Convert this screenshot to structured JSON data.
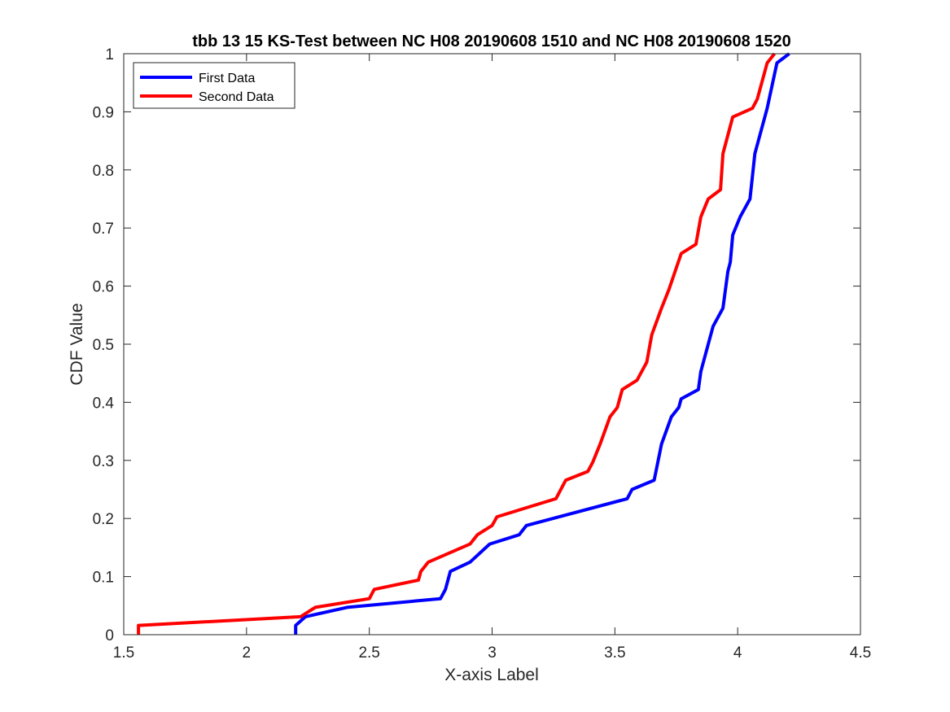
{
  "chart_data": {
    "type": "line",
    "title": "tbb 13 15 KS-Test between NC H08 20190608 1510 and NC H08 20190608 1520",
    "xlabel": "X-axis Label",
    "ylabel": "CDF Value",
    "xlim": [
      1.5,
      4.5
    ],
    "ylim": [
      0,
      1
    ],
    "xticks": [
      1.5,
      2,
      2.5,
      3,
      3.5,
      4,
      4.5
    ],
    "xtick_labels": [
      "1.5",
      "2",
      "2.5",
      "3",
      "3.5",
      "4",
      "4.5"
    ],
    "yticks": [
      0,
      0.1,
      0.2,
      0.3,
      0.4,
      0.5,
      0.6,
      0.7,
      0.8,
      0.9,
      1
    ],
    "ytick_labels": [
      "0",
      "0.1",
      "0.2",
      "0.3",
      "0.4",
      "0.5",
      "0.6",
      "0.7",
      "0.8",
      "0.9",
      "1"
    ],
    "grid": false,
    "legend_position": "top-left",
    "series": [
      {
        "name": "First Data",
        "color": "#0000ff",
        "points": [
          [
            2.2,
            0.0
          ],
          [
            2.2,
            0.016
          ],
          [
            2.24,
            0.031
          ],
          [
            2.41,
            0.047
          ],
          [
            2.79,
            0.062
          ],
          [
            2.81,
            0.078
          ],
          [
            2.83,
            0.109
          ],
          [
            2.91,
            0.125
          ],
          [
            2.99,
            0.156
          ],
          [
            3.11,
            0.172
          ],
          [
            3.14,
            0.188
          ],
          [
            3.55,
            0.234
          ],
          [
            3.57,
            0.25
          ],
          [
            3.66,
            0.266
          ],
          [
            3.69,
            0.328
          ],
          [
            3.73,
            0.375
          ],
          [
            3.76,
            0.391
          ],
          [
            3.77,
            0.406
          ],
          [
            3.84,
            0.422
          ],
          [
            3.85,
            0.453
          ],
          [
            3.9,
            0.531
          ],
          [
            3.94,
            0.562
          ],
          [
            3.96,
            0.625
          ],
          [
            3.97,
            0.641
          ],
          [
            3.98,
            0.688
          ],
          [
            4.01,
            0.719
          ],
          [
            4.05,
            0.75
          ],
          [
            4.07,
            0.828
          ],
          [
            4.12,
            0.906
          ],
          [
            4.16,
            0.984
          ],
          [
            4.21,
            1.0
          ]
        ]
      },
      {
        "name": "Second Data",
        "color": "#ff0000",
        "points": [
          [
            1.56,
            0.0
          ],
          [
            1.56,
            0.016
          ],
          [
            2.22,
            0.031
          ],
          [
            2.28,
            0.047
          ],
          [
            2.5,
            0.062
          ],
          [
            2.52,
            0.078
          ],
          [
            2.7,
            0.094
          ],
          [
            2.71,
            0.109
          ],
          [
            2.74,
            0.125
          ],
          [
            2.91,
            0.156
          ],
          [
            2.94,
            0.172
          ],
          [
            3.0,
            0.188
          ],
          [
            3.02,
            0.203
          ],
          [
            3.26,
            0.234
          ],
          [
            3.3,
            0.266
          ],
          [
            3.39,
            0.281
          ],
          [
            3.41,
            0.297
          ],
          [
            3.44,
            0.328
          ],
          [
            3.48,
            0.375
          ],
          [
            3.51,
            0.391
          ],
          [
            3.53,
            0.422
          ],
          [
            3.59,
            0.438
          ],
          [
            3.63,
            0.469
          ],
          [
            3.65,
            0.516
          ],
          [
            3.69,
            0.562
          ],
          [
            3.72,
            0.594
          ],
          [
            3.77,
            0.656
          ],
          [
            3.83,
            0.672
          ],
          [
            3.85,
            0.719
          ],
          [
            3.88,
            0.75
          ],
          [
            3.93,
            0.766
          ],
          [
            3.94,
            0.828
          ],
          [
            3.98,
            0.891
          ],
          [
            4.06,
            0.906
          ],
          [
            4.08,
            0.922
          ],
          [
            4.12,
            0.984
          ],
          [
            4.15,
            1.0
          ]
        ]
      }
    ]
  }
}
